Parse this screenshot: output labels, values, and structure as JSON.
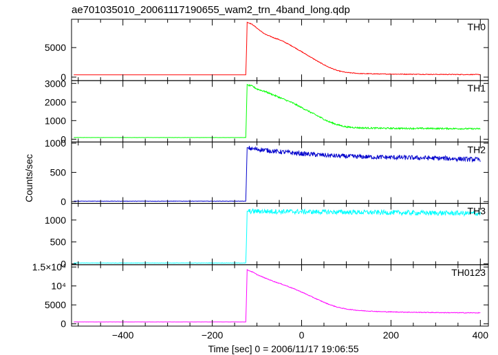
{
  "chart_data": {
    "type": "line",
    "title": "ae701035010_20061117190655_wam2_trn_4band_long.qdp",
    "xlabel": "Time [sec] 0 = 2006/11/17 19:06:55",
    "ylabel": "Counts/sec",
    "xlim": [
      -515,
      418
    ],
    "x_ticks": [
      -400,
      -200,
      0,
      200,
      400
    ],
    "grid": false,
    "panels": [
      {
        "name": "TH0",
        "color": "#ff0000",
        "ylim": [
          -600,
          9800
        ],
        "y_ticks": [
          {
            "v": 0,
            "t": "0"
          },
          {
            "v": 5000,
            "t": "5000"
          }
        ],
        "x": [
          -510,
          -130,
          -125,
          -123,
          -122,
          -119,
          -115,
          -110,
          -100,
          -90,
          -80,
          -70,
          -60,
          -50,
          -40,
          -20,
          0,
          20,
          40,
          60,
          80,
          100,
          130,
          180,
          250,
          320,
          390,
          400
        ],
        "y": [
          380,
          380,
          380,
          5500,
          9300,
          9200,
          9100,
          8900,
          8300,
          7700,
          7200,
          6900,
          6600,
          6350,
          6000,
          5200,
          4300,
          3400,
          2500,
          1700,
          1100,
          780,
          600,
          520,
          480,
          450,
          430,
          430
        ],
        "noise": 60
      },
      {
        "name": "TH1",
        "color": "#00ff00",
        "ylim": [
          -150,
          3150
        ],
        "y_ticks": [
          {
            "v": 0,
            "t": "0"
          },
          {
            "v": 1000,
            "t": "1000"
          },
          {
            "v": 2000,
            "t": "2000"
          },
          {
            "v": 3000,
            "t": "3000"
          }
        ],
        "x": [
          -510,
          -130,
          -125,
          -123,
          -122,
          -119,
          -110,
          -100,
          -80,
          -60,
          -40,
          -20,
          0,
          20,
          40,
          60,
          80,
          100,
          130,
          180,
          250,
          320,
          390,
          400
        ],
        "y": [
          90,
          90,
          90,
          1900,
          2950,
          2900,
          2850,
          2700,
          2550,
          2350,
          2150,
          1950,
          1700,
          1450,
          1200,
          950,
          780,
          660,
          610,
          590,
          580,
          575,
          560,
          560
        ],
        "noise": 40
      },
      {
        "name": "TH2",
        "color": "#0000cc",
        "ylim": [
          -30,
          1020
        ],
        "y_ticks": [
          {
            "v": 0,
            "t": "0"
          },
          {
            "v": 500,
            "t": "500"
          },
          {
            "v": 1000,
            "t": "1000"
          }
        ],
        "x": [
          -510,
          -130,
          -125,
          -123,
          -122,
          -119,
          -110,
          -90,
          -60,
          -30,
          0,
          40,
          80,
          120,
          180,
          250,
          320,
          390,
          400
        ],
        "y": [
          8,
          8,
          8,
          600,
          920,
          920,
          900,
          890,
          860,
          840,
          820,
          800,
          780,
          770,
          760,
          750,
          740,
          720,
          720
        ],
        "noise": 40
      },
      {
        "name": "TH3",
        "color": "#00ffff",
        "ylim": [
          -20,
          1380
        ],
        "y_ticks": [
          {
            "v": 0,
            "t": "0"
          },
          {
            "v": 500,
            "t": "500"
          },
          {
            "v": 1000,
            "t": "1000"
          }
        ],
        "x": [
          -510,
          -130,
          -125,
          -123,
          -122,
          -119,
          -100,
          0,
          100,
          200,
          300,
          390,
          400
        ],
        "y": [
          20,
          20,
          20,
          700,
          1200,
          1200,
          1200,
          1190,
          1180,
          1170,
          1160,
          1150,
          1150
        ],
        "noise": 55
      },
      {
        "name": "TH0123",
        "color": "#ff00ff",
        "ylim": [
          -600,
          15600
        ],
        "y_ticks": [
          {
            "v": 0,
            "t": "0"
          },
          {
            "v": 5000,
            "t": "5000"
          },
          {
            "v": 10000,
            "t": "10⁴"
          },
          {
            "v": 15000,
            "t": "1.5×10⁴"
          }
        ],
        "x": [
          -510,
          -130,
          -125,
          -123,
          -122,
          -119,
          -110,
          -100,
          -80,
          -60,
          -40,
          -20,
          0,
          20,
          40,
          60,
          80,
          100,
          130,
          180,
          250,
          320,
          390,
          400
        ],
        "y": [
          500,
          500,
          500,
          9000,
          14300,
          14100,
          13700,
          13000,
          12000,
          11100,
          10300,
          9400,
          8400,
          7300,
          6200,
          5200,
          4400,
          3900,
          3500,
          3200,
          3050,
          2950,
          2900,
          2900
        ],
        "noise": 90
      }
    ]
  }
}
